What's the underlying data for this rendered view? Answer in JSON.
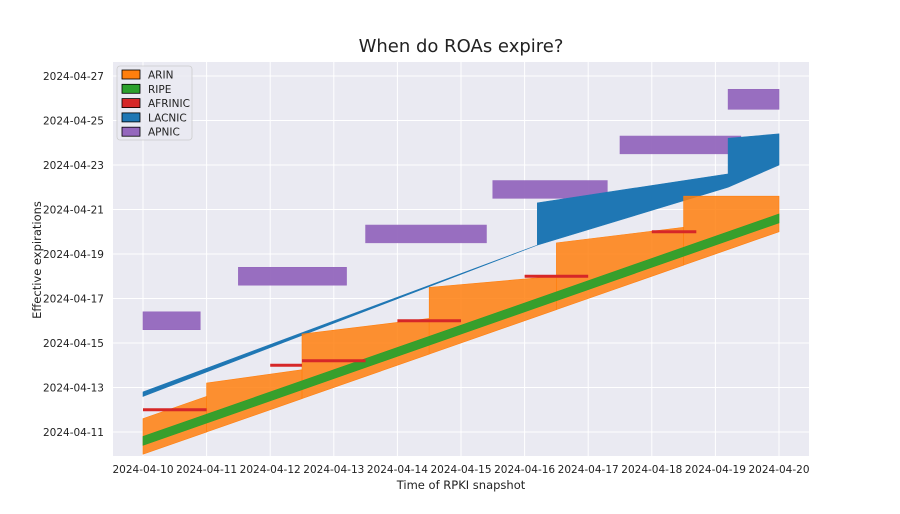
{
  "chart_data": {
    "type": "area",
    "title": "When do ROAs expire?",
    "xlabel": "Time of RPKI snapshot",
    "ylabel": "Effective expirations",
    "xlim": [
      "2024-04-10",
      "2024-04-20"
    ],
    "ylim": [
      "2024-04-10",
      "2024-04-27"
    ],
    "x_ticks": [
      "2024-04-10",
      "2024-04-11",
      "2024-04-12",
      "2024-04-13",
      "2024-04-14",
      "2024-04-15",
      "2024-04-16",
      "2024-04-17",
      "2024-04-18",
      "2024-04-19",
      "2024-04-20"
    ],
    "y_ticks": [
      "2024-04-11",
      "2024-04-13",
      "2024-04-15",
      "2024-04-17",
      "2024-04-19",
      "2024-04-21",
      "2024-04-23",
      "2024-04-25",
      "2024-04-27"
    ],
    "grid": true,
    "legend_position": "top-left",
    "series": [
      {
        "name": "ARIN",
        "color": "#ff7f0e",
        "bands": [
          {
            "x": [
              "2024-04-10",
              "2024-04-11"
            ],
            "low": [
              "2024-04-10",
              "2024-04-11"
            ],
            "high": [
              "2024-04-11.6",
              "2024-04-12.6"
            ]
          },
          {
            "x": [
              "2024-04-11",
              "2024-04-12.5"
            ],
            "low": [
              "2024-04-11",
              "2024-04-12.5"
            ],
            "high": [
              "2024-04-13.2",
              "2024-04-13.8"
            ]
          },
          {
            "x": [
              "2024-04-12.5",
              "2024-04-14.5"
            ],
            "low": [
              "2024-04-12.5",
              "2024-04-14.5"
            ],
            "high": [
              "2024-04-15.4",
              "2024-04-16.1"
            ]
          },
          {
            "x": [
              "2024-04-14.5",
              "2024-04-16.5"
            ],
            "low": [
              "2024-04-14.5",
              "2024-04-16.5"
            ],
            "high": [
              "2024-04-17.5",
              "2024-04-18"
            ]
          },
          {
            "x": [
              "2024-04-16.5",
              "2024-04-18.5"
            ],
            "low": [
              "2024-04-16.5",
              "2024-04-18.5"
            ],
            "high": [
              "2024-04-19.5",
              "2024-04-20.2"
            ]
          },
          {
            "x": [
              "2024-04-18.5",
              "2024-04-20"
            ],
            "low": [
              "2024-04-18.5",
              "2024-04-20"
            ],
            "high": [
              "2024-04-21.6",
              "2024-04-21.6"
            ]
          }
        ]
      },
      {
        "name": "RIPE",
        "color": "#2ca02c",
        "bands": [
          {
            "x": [
              "2024-04-10",
              "2024-04-20"
            ],
            "low": [
              "2024-04-10.4",
              "2024-04-20.4"
            ],
            "high": [
              "2024-04-10.8",
              "2024-04-20.8"
            ]
          }
        ]
      },
      {
        "name": "AFRINIC",
        "color": "#d62728",
        "segments": [
          {
            "x": [
              "2024-04-10",
              "2024-04-11"
            ],
            "y": "2024-04-12"
          },
          {
            "x": [
              "2024-04-12",
              "2024-04-12.5"
            ],
            "y": "2024-04-14"
          },
          {
            "x": [
              "2024-04-12.5",
              "2024-04-13.5"
            ],
            "y": "2024-04-14.2"
          },
          {
            "x": [
              "2024-04-14",
              "2024-04-15"
            ],
            "y": "2024-04-16"
          },
          {
            "x": [
              "2024-04-16",
              "2024-04-17"
            ],
            "y": "2024-04-18"
          },
          {
            "x": [
              "2024-04-18",
              "2024-04-18.7"
            ],
            "y": "2024-04-20"
          }
        ]
      },
      {
        "name": "LACNIC",
        "color": "#1f77b4",
        "x": [
          "2024-04-10",
          "2024-04-16.2",
          "2024-04-16.2",
          "2024-04-19.2",
          "2024-04-19.2",
          "2024-04-20"
        ],
        "low": [
          "2024-04-12.6",
          "2024-04-19.4",
          "2024-04-19.4",
          "2024-04-22.0",
          "2024-04-22.0",
          "2024-04-23.0"
        ],
        "high": [
          "2024-04-12.8",
          "2024-04-19.4",
          "2024-04-21.3",
          "2024-04-22.6",
          "2024-04-24.2",
          "2024-04-24.4"
        ]
      },
      {
        "name": "APNIC",
        "color": "#9467bd",
        "bands": [
          {
            "x": [
              "2024-04-10",
              "2024-04-10.9"
            ],
            "low": [
              "2024-04-15.6",
              "2024-04-15.6"
            ],
            "high": [
              "2024-04-16.4",
              "2024-04-16.4"
            ]
          },
          {
            "x": [
              "2024-04-11.5",
              "2024-04-13.2"
            ],
            "low": [
              "2024-04-17.6",
              "2024-04-17.6"
            ],
            "high": [
              "2024-04-18.4",
              "2024-04-18.4"
            ]
          },
          {
            "x": [
              "2024-04-13.5",
              "2024-04-15.4"
            ],
            "low": [
              "2024-04-19.5",
              "2024-04-19.5"
            ],
            "high": [
              "2024-04-20.3",
              "2024-04-20.3"
            ]
          },
          {
            "x": [
              "2024-04-15.5",
              "2024-04-17.3"
            ],
            "low": [
              "2024-04-21.5",
              "2024-04-21.5"
            ],
            "high": [
              "2024-04-22.3",
              "2024-04-22.3"
            ]
          },
          {
            "x": [
              "2024-04-17.5",
              "2024-04-19.4"
            ],
            "low": [
              "2024-04-23.5",
              "2024-04-23.5"
            ],
            "high": [
              "2024-04-24.3",
              "2024-04-24.3"
            ]
          },
          {
            "x": [
              "2024-04-19.2",
              "2024-04-20"
            ],
            "low": [
              "2024-04-25.5",
              "2024-04-25.5"
            ],
            "high": [
              "2024-04-26.4",
              "2024-04-26.4"
            ]
          }
        ]
      }
    ]
  }
}
